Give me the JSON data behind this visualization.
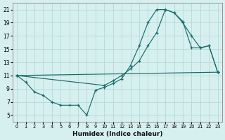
{
  "xlabel": "Humidex (Indice chaleur)",
  "background_color": "#d6f0ef",
  "grid_color": "#b8d8d8",
  "line_color": "#1a6b6b",
  "xlim": [
    -0.5,
    23.5
  ],
  "ylim": [
    4,
    22
  ],
  "xticks": [
    0,
    1,
    2,
    3,
    4,
    5,
    6,
    7,
    8,
    9,
    10,
    11,
    12,
    13,
    14,
    15,
    16,
    17,
    18,
    19,
    20,
    21,
    22,
    23
  ],
  "yticks": [
    5,
    7,
    9,
    11,
    13,
    15,
    17,
    19,
    21
  ],
  "curve1_x": [
    0,
    1,
    2,
    3,
    4,
    5,
    6,
    7,
    8,
    9,
    10,
    11,
    12,
    13,
    14,
    15,
    16,
    17,
    18,
    19,
    20,
    21,
    22,
    23
  ],
  "curve1_y": [
    11,
    10,
    8.5,
    8,
    7,
    6.5,
    6.5,
    6.5,
    5.0,
    8.8,
    9.2,
    9.8,
    10.5,
    12.5,
    15.5,
    19.0,
    21.0,
    21.0,
    20.5,
    19.2,
    15.2,
    15.2,
    15.5,
    11.5
  ],
  "curve2_x": [
    0,
    23
  ],
  "curve2_y": [
    11,
    11.5
  ],
  "curve3_x": [
    0,
    10,
    11,
    12,
    13,
    14,
    15,
    16,
    17,
    18,
    19,
    20,
    21,
    22,
    23
  ],
  "curve3_y": [
    11,
    9.5,
    10.2,
    11.0,
    12.0,
    13.2,
    15.5,
    17.5,
    21.0,
    20.5,
    19.0,
    17.0,
    15.2,
    15.5,
    11.5
  ]
}
